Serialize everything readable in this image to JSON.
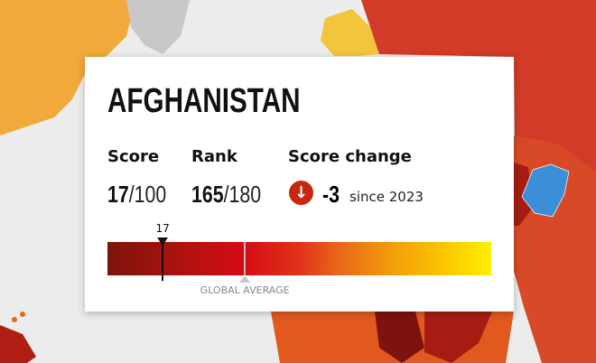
{
  "country": {
    "name": "AFGHANISTAN"
  },
  "score": {
    "label": "Score",
    "value": "17",
    "max": "/100",
    "marker_label": "17",
    "scale_position_percent": 14.4
  },
  "rank": {
    "label": "Rank",
    "value": "165",
    "max": "/180"
  },
  "score_change": {
    "label": "Score change",
    "direction": "down",
    "icon": "arrow-down-icon",
    "value": "-3",
    "since": "since 2023",
    "color": "#c9260f"
  },
  "global_average": {
    "label": "GLOBAL AVERAGE",
    "scale_position_percent": 35.8
  },
  "colors": {
    "highlight_country": "#3a8fd6",
    "very_serious": "#7d130c",
    "difficult": "#d13b28",
    "problematic": "#e8661a",
    "satisfactory": "#f5b437",
    "good": "#ffef00",
    "no_data": "#c8c8c8"
  }
}
